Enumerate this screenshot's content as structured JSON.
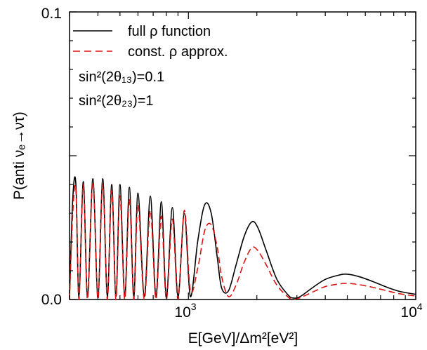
{
  "chart_data": {
    "type": "line",
    "xscale": "log",
    "xlim": [
      300,
      10000
    ],
    "ylim": [
      0,
      0.1
    ],
    "grid": false,
    "legend_position": "top-left",
    "xlabel": "E[GeV]/Δm²[eV²]",
    "ylabel": "P(anti νₑ→ντ)",
    "yticks": [
      "0.0",
      "0.1"
    ],
    "xticks": [
      {
        "base": "10",
        "exp": "3",
        "value": 1000
      },
      {
        "base": "10",
        "exp": "4",
        "value": 10000
      }
    ],
    "annotations": [
      {
        "text": "sin²(2θ₁₃)=0.1"
      },
      {
        "text": "sin²(2θ₂₃)=1"
      }
    ],
    "series": [
      {
        "name": "full ρ function",
        "color": "#000000",
        "style": "solid",
        "x": [
          300,
          310,
          320,
          330,
          345,
          360,
          380,
          400,
          420,
          440,
          460,
          480,
          500,
          525,
          550,
          575,
          600,
          640,
          680,
          720,
          760,
          800,
          850,
          900,
          960,
          1020,
          1100,
          1180,
          1260,
          1340,
          1400,
          1500,
          1620,
          1760,
          1900,
          2020,
          2200,
          2450,
          2750,
          2900,
          3100,
          3500,
          4000,
          4600,
          5000,
          5600,
          6500,
          7500,
          8500,
          10000
        ],
        "y": [
          0.001,
          0.035,
          0.04,
          0.001,
          0.041,
          0.001,
          0.042,
          0.001,
          0.042,
          0.001,
          0.04,
          0.001,
          0.04,
          0.001,
          0.039,
          0.001,
          0.037,
          0.001,
          0.036,
          0.001,
          0.034,
          0.001,
          0.032,
          0.001,
          0.03,
          0.001,
          0.0205,
          0.033,
          0.03,
          0.0145,
          0.004,
          0.003,
          0.012,
          0.022,
          0.027,
          0.025,
          0.017,
          0.007,
          0.0015,
          0.0005,
          0.001,
          0.004,
          0.007,
          0.0085,
          0.0088,
          0.008,
          0.0062,
          0.0042,
          0.0028,
          0.0018
        ]
      },
      {
        "name": "const. ρ approx.",
        "color": "#dd1111",
        "style": "dashed",
        "x": [
          300,
          310,
          320,
          330,
          345,
          360,
          380,
          400,
          420,
          440,
          460,
          480,
          500,
          525,
          550,
          575,
          600,
          640,
          680,
          720,
          760,
          800,
          850,
          900,
          960,
          1020,
          1100,
          1180,
          1260,
          1340,
          1400,
          1500,
          1620,
          1760,
          1900,
          2020,
          2200,
          2450,
          2750,
          2900,
          3100,
          3500,
          4000,
          4600,
          5000,
          5600,
          6500,
          7500,
          8500,
          10000
        ],
        "y": [
          0.0,
          0.03,
          0.038,
          0.0,
          0.04,
          0.0,
          0.041,
          0.0,
          0.04,
          0.0,
          0.038,
          0.0,
          0.036,
          0.0,
          0.035,
          0.0,
          0.033,
          0.0,
          0.031,
          0.0,
          0.029,
          0.0,
          0.028,
          0.0,
          0.031,
          0.003,
          0.011,
          0.024,
          0.026,
          0.018,
          0.008,
          0.001,
          0.005,
          0.013,
          0.018,
          0.017,
          0.012,
          0.005,
          0.0008,
          0.0,
          0.0006,
          0.0025,
          0.0045,
          0.0054,
          0.0056,
          0.0052,
          0.0042,
          0.003,
          0.002,
          0.0012
        ]
      }
    ]
  }
}
